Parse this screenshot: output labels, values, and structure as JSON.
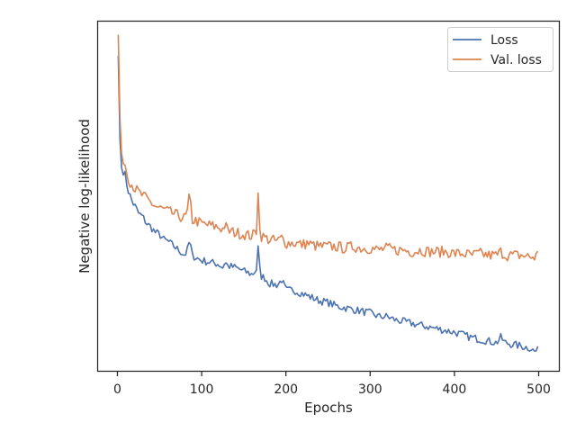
{
  "chart_data": {
    "type": "line",
    "title": "",
    "xlabel": "Epochs",
    "ylabel": "Negative log-likelihood",
    "xlim": [
      -24,
      524
    ],
    "ylim": [
      0,
      100
    ],
    "xticks": [
      0,
      100,
      200,
      300,
      400,
      500
    ],
    "yticks_shown": false,
    "grid": false,
    "legend": {
      "position": "top-right"
    },
    "series": [
      {
        "name": "Loss",
        "color": "#4c72b0",
        "x": [
          1,
          2,
          3,
          4,
          5,
          6,
          8,
          10,
          12,
          15,
          18,
          21,
          25,
          30,
          35,
          40,
          45,
          50,
          55,
          60,
          65,
          70,
          75,
          80,
          84,
          86,
          88,
          92,
          100,
          110,
          120,
          125,
          128,
          130,
          140,
          150,
          160,
          165,
          167,
          169,
          171,
          175,
          180,
          190,
          195,
          200,
          210,
          220,
          225,
          230,
          240,
          250,
          260,
          270,
          280,
          290,
          300,
          310,
          320,
          330,
          340,
          350,
          360,
          370,
          380,
          390,
          400,
          410,
          420,
          430,
          440,
          450,
          455,
          460,
          470,
          480,
          490,
          495,
          500
        ],
        "y": [
          90,
          80,
          66,
          60,
          58,
          57,
          57,
          55,
          52,
          50,
          48,
          47,
          45,
          44,
          42,
          41,
          39.5,
          39,
          37.5,
          37,
          36,
          35,
          34,
          33,
          35,
          38,
          33,
          32.5,
          31.5,
          31,
          30.5,
          29.5,
          31.5,
          30,
          29.5,
          28.5,
          27.5,
          29,
          35,
          29,
          27,
          26.5,
          25,
          24.5,
          26,
          23,
          23,
          22,
          21.5,
          21,
          20,
          19.5,
          18.5,
          18,
          17.5,
          17,
          16.5,
          15.5,
          15.5,
          14.5,
          14,
          13.5,
          13,
          12.5,
          12,
          11.5,
          11,
          10.3,
          9.5,
          9,
          8.5,
          8,
          9.5,
          8,
          7.5,
          7,
          6.5,
          5.5,
          6
        ]
      },
      {
        "name": "Val. loss",
        "color": "#dd8452",
        "x": [
          1,
          2,
          3,
          4,
          5,
          6,
          8,
          10,
          12,
          15,
          18,
          21,
          25,
          30,
          35,
          40,
          45,
          50,
          55,
          60,
          65,
          70,
          75,
          80,
          84,
          86,
          88,
          92,
          100,
          110,
          120,
          125,
          128,
          130,
          140,
          150,
          160,
          165,
          167,
          169,
          171,
          175,
          180,
          190,
          195,
          200,
          210,
          220,
          225,
          230,
          240,
          250,
          260,
          270,
          280,
          290,
          300,
          310,
          320,
          330,
          340,
          350,
          360,
          370,
          380,
          390,
          400,
          410,
          420,
          430,
          440,
          450,
          455,
          460,
          470,
          480,
          490,
          495,
          500
        ],
        "y": [
          96,
          86,
          72,
          65,
          62,
          61,
          60,
          58,
          56,
          54,
          53,
          52,
          51,
          50,
          49,
          48,
          47,
          46.5,
          46,
          45.5,
          45,
          44.5,
          44,
          43.5,
          46,
          52,
          43,
          43,
          42,
          41.5,
          41,
          40.5,
          42,
          40,
          39.5,
          39,
          38.5,
          40,
          52,
          40,
          38.5,
          38,
          37.5,
          37,
          38,
          36.5,
          36.5,
          36,
          36.5,
          36,
          35.5,
          35.5,
          35.5,
          35,
          35.5,
          35,
          35,
          34.5,
          35,
          34.5,
          34.5,
          34,
          34.5,
          34,
          34,
          34,
          33.5,
          33.5,
          33,
          33.5,
          33,
          33,
          34,
          33,
          33,
          33,
          32.5,
          32.5,
          33.5
        ]
      }
    ]
  }
}
